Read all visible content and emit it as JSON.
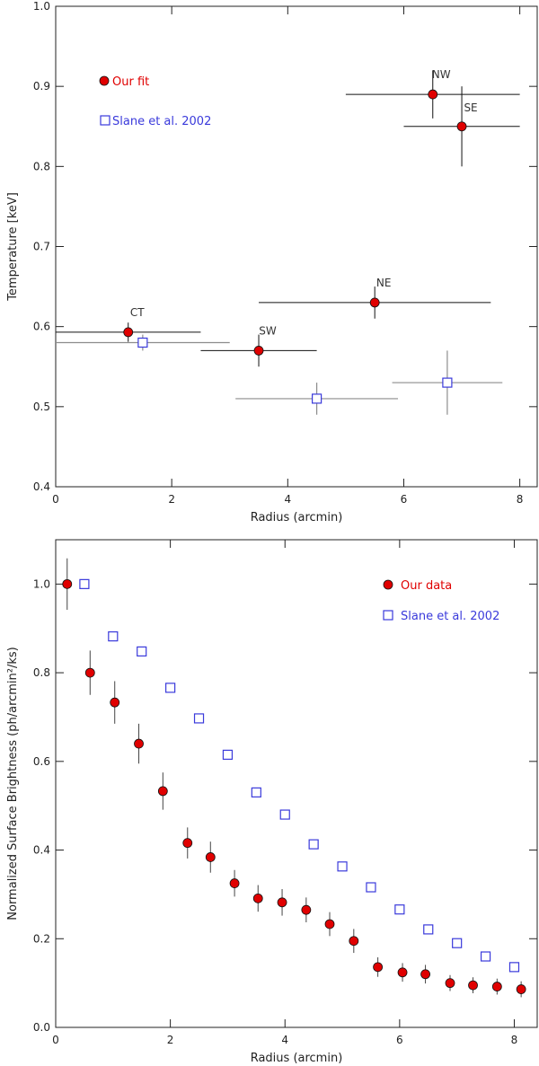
{
  "colors": {
    "ours": "#e00000",
    "slane": "#3a3adb",
    "ink": "#222222",
    "gray": "#8c8c8c"
  },
  "chart_data": [
    {
      "type": "scatter",
      "xlabel": "Radius (arcmin)",
      "ylabel": "Temperature [keV]",
      "xlim": [
        0,
        8.3
      ],
      "ylim": [
        0.4,
        1.0
      ],
      "xticks": [
        0,
        2,
        4,
        6,
        8
      ],
      "yticks": [
        0.4,
        0.5,
        0.6,
        0.7,
        0.8,
        0.9,
        1.0
      ],
      "ytick_labels": [
        "0.4",
        "0.5",
        "0.6",
        "0.7",
        "0.8",
        "0.9",
        "1.0"
      ],
      "legend": {
        "ours": "Our fit",
        "slane": "Slane et al. 2002"
      },
      "series": [
        {
          "name": "Our fit",
          "marker": "filled-circle",
          "points": [
            {
              "label": "CT",
              "x": 1.25,
              "y": 0.593,
              "xerr": [
                0.0,
                2.5
              ],
              "yerr": 0.012
            },
            {
              "label": "SW",
              "x": 3.5,
              "y": 0.57,
              "xerr": [
                2.5,
                4.5
              ],
              "yerr": 0.02
            },
            {
              "label": "NE",
              "x": 5.5,
              "y": 0.63,
              "xerr": [
                3.5,
                7.5
              ],
              "yerr": 0.02
            },
            {
              "label": "NW",
              "x": 6.5,
              "y": 0.89,
              "xerr": [
                5.0,
                8.0
              ],
              "yerr": 0.03
            },
            {
              "label": "SE",
              "x": 7.0,
              "y": 0.85,
              "xerr": [
                6.0,
                8.0
              ],
              "yerr": 0.05
            }
          ]
        },
        {
          "name": "Slane et al. 2002",
          "marker": "open-square",
          "points": [
            {
              "x": 1.5,
              "y": 0.58,
              "xerr": [
                0.0,
                3.0
              ],
              "yerr": 0.01
            },
            {
              "x": 4.5,
              "y": 0.51,
              "xerr": [
                3.1,
                5.9
              ],
              "yerr": 0.02
            },
            {
              "x": 6.75,
              "y": 0.53,
              "xerr": [
                5.8,
                7.7
              ],
              "yerr": 0.04
            }
          ]
        }
      ]
    },
    {
      "type": "scatter",
      "xlabel": "Radius (arcmin)",
      "ylabel": "Normalized Surface Brightness (ph/arcmin²/ks)",
      "xlim": [
        0,
        8.4
      ],
      "ylim": [
        0.0,
        1.1
      ],
      "xticks": [
        0,
        2,
        4,
        6,
        8
      ],
      "yticks": [
        0.0,
        0.2,
        0.4,
        0.6,
        0.8,
        1.0
      ],
      "ytick_labels": [
        "0.0",
        "0.2",
        "0.4",
        "0.6",
        "0.8",
        "1.0"
      ],
      "legend": {
        "ours": "Our data",
        "slane": "Slane et al. 2002"
      },
      "series": [
        {
          "name": "Our data",
          "marker": "filled-circle",
          "x": [
            0.2,
            0.6,
            1.03,
            1.45,
            1.87,
            2.3,
            2.7,
            3.12,
            3.53,
            3.95,
            4.37,
            4.78,
            5.2,
            5.62,
            6.05,
            6.45,
            6.88,
            7.28,
            7.7,
            8.12
          ],
          "y": [
            1.0,
            0.8,
            0.733,
            0.64,
            0.533,
            0.416,
            0.384,
            0.325,
            0.291,
            0.282,
            0.265,
            0.233,
            0.195,
            0.136,
            0.124,
            0.12,
            0.1,
            0.095,
            0.092,
            0.086
          ],
          "yerr": [
            0.058,
            0.05,
            0.048,
            0.045,
            0.042,
            0.035,
            0.035,
            0.03,
            0.03,
            0.03,
            0.028,
            0.027,
            0.027,
            0.022,
            0.021,
            0.021,
            0.018,
            0.018,
            0.018,
            0.018
          ]
        },
        {
          "name": "Slane et al. 2002",
          "marker": "open-square",
          "x": [
            0.5,
            1.0,
            1.5,
            2.0,
            2.5,
            3.0,
            3.5,
            4.0,
            4.5,
            5.0,
            5.5,
            6.0,
            6.5,
            7.0,
            7.5,
            8.0
          ],
          "y": [
            1.0,
            0.882,
            0.848,
            0.766,
            0.697,
            0.615,
            0.53,
            0.48,
            0.413,
            0.363,
            0.316,
            0.266,
            0.221,
            0.19,
            0.16,
            0.136
          ]
        }
      ]
    }
  ]
}
